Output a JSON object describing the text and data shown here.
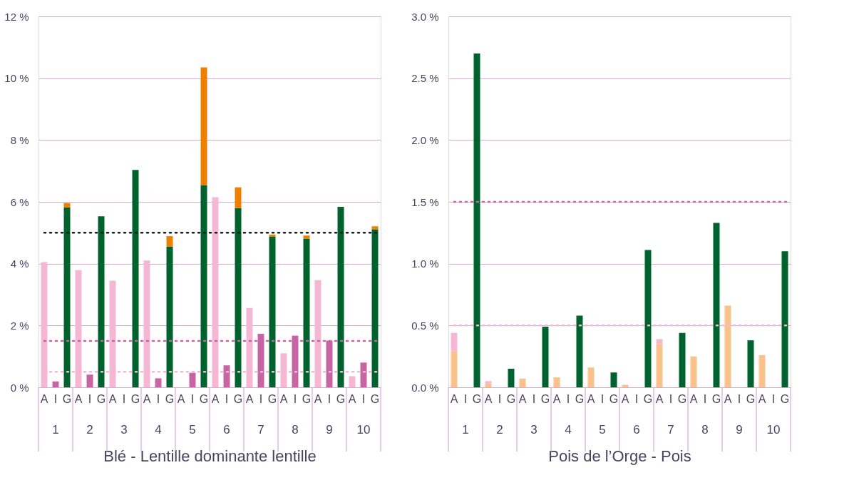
{
  "chart_data": [
    {
      "type": "bar",
      "stacked": true,
      "xlabel": "Blé - Lentille dominante lentille",
      "categories": [
        "A",
        "I",
        "G",
        "A",
        "I",
        "G",
        "A",
        "I",
        "G",
        "A",
        "I",
        "G",
        "A",
        "I",
        "G",
        "A",
        "I",
        "G",
        "A",
        "I",
        "G",
        "A",
        "I",
        "G",
        "A",
        "I",
        "G",
        "A",
        "I",
        "G"
      ],
      "series": [
        {
          "color": "#f4b8d4",
          "values": [
            4.05,
            null,
            null,
            3.79,
            null,
            null,
            3.45,
            null,
            null,
            4.1,
            null,
            null,
            null,
            null,
            null,
            6.15,
            null,
            null,
            2.57,
            null,
            null,
            1.1,
            null,
            null,
            3.47,
            null,
            null,
            0.36,
            null,
            null
          ]
        },
        {
          "color": "#c764a4",
          "values": [
            null,
            0.19,
            null,
            null,
            0.41,
            null,
            null,
            null,
            null,
            null,
            0.29,
            null,
            null,
            0.47,
            null,
            null,
            0.71,
            null,
            null,
            1.73,
            null,
            null,
            1.67,
            null,
            null,
            1.51,
            null,
            null,
            0.8,
            null
          ]
        },
        {
          "color": "#00632e",
          "values": [
            null,
            null,
            5.82,
            null,
            null,
            5.53,
            null,
            null,
            7.03,
            null,
            null,
            4.56,
            null,
            null,
            6.54,
            null,
            null,
            5.8,
            null,
            null,
            4.87,
            null,
            null,
            4.81,
            null,
            null,
            5.84,
            null,
            null,
            5.11
          ]
        },
        {
          "color": "#f07f00",
          "values": [
            null,
            null,
            0.14,
            null,
            null,
            null,
            null,
            null,
            null,
            null,
            null,
            0.33,
            null,
            null,
            3.81,
            null,
            null,
            0.67,
            null,
            null,
            0.07,
            null,
            null,
            0.1,
            null,
            null,
            null,
            null,
            null,
            0.1
          ]
        }
      ],
      "ylim": [
        0,
        12
      ],
      "yticks": [
        {
          "value": 0,
          "label": "0 %"
        },
        {
          "value": 2,
          "label": "2 %"
        },
        {
          "value": 4,
          "label": "4 %"
        },
        {
          "value": 6,
          "label": "6 %"
        },
        {
          "value": 8,
          "label": "8 %"
        },
        {
          "value": 10,
          "label": "10 %"
        },
        {
          "value": 12,
          "label": "12 %"
        }
      ],
      "grid": "y",
      "ref_lines": [
        {
          "axis": "y",
          "value": 5,
          "color": "#1a1a1a",
          "line_style": "dotted"
        },
        {
          "axis": "y",
          "value": 1.5,
          "color": "#c764a4",
          "line_style": "dotted"
        },
        {
          "axis": "y",
          "value": 0.5,
          "color": "#f4b8d4",
          "line_style": "dotted"
        }
      ],
      "annotations": [
        "1",
        "2",
        "3",
        "4",
        "5",
        "6",
        "7",
        "8",
        "9",
        "10"
      ]
    },
    {
      "type": "bar",
      "stacked": true,
      "xlabel": "Pois de l’Orge - Pois",
      "categories": [
        "A",
        "I",
        "G",
        "A",
        "I",
        "G",
        "A",
        "I",
        "G",
        "A",
        "I",
        "G",
        "A",
        "I",
        "G",
        "A",
        "I",
        "G",
        "A",
        "I",
        "G",
        "A",
        "I",
        "G",
        "A",
        "I",
        "G",
        "A",
        "I",
        "G"
      ],
      "series": [
        {
          "color": "#f8c28a",
          "values": [
            0.29,
            null,
            null,
            0.03,
            null,
            null,
            0.07,
            null,
            null,
            0.08,
            null,
            null,
            0.16,
            null,
            null,
            0.02,
            null,
            null,
            0.35,
            null,
            null,
            0.25,
            null,
            null,
            0.66,
            null,
            null,
            0.26,
            null,
            null
          ]
        },
        {
          "color": "#f4b8d4",
          "values": [
            0.15,
            null,
            null,
            0.02,
            null,
            null,
            null,
            null,
            null,
            null,
            null,
            null,
            null,
            null,
            null,
            null,
            null,
            null,
            0.04,
            null,
            null,
            null,
            null,
            null,
            null,
            null,
            null,
            null,
            null,
            null
          ]
        },
        {
          "color": "#00632e",
          "values": [
            null,
            null,
            2.7,
            null,
            null,
            0.15,
            null,
            null,
            0.49,
            null,
            null,
            0.58,
            null,
            null,
            0.12,
            null,
            null,
            1.11,
            null,
            null,
            0.44,
            null,
            null,
            1.33,
            null,
            null,
            0.38,
            null,
            null,
            1.1
          ]
        }
      ],
      "ylim": [
        0,
        3
      ],
      "yticks": [
        {
          "value": 0,
          "label": "0.0 %"
        },
        {
          "value": 0.5,
          "label": "0.5 %"
        },
        {
          "value": 1,
          "label": "1.0 %"
        },
        {
          "value": 1.5,
          "label": "1.5 %"
        },
        {
          "value": 2,
          "label": "2.0 %"
        },
        {
          "value": 2.5,
          "label": "2.5 %"
        },
        {
          "value": 3,
          "label": "3.0 %"
        }
      ],
      "grid": "y",
      "ref_lines": [
        {
          "axis": "y",
          "value": 1.5,
          "color": "#c764a4",
          "line_style": "dotted"
        },
        {
          "axis": "y",
          "value": 0.5,
          "color": "#f4b8d4",
          "line_style": "dotted"
        }
      ],
      "annotations": [
        "1",
        "2",
        "3",
        "4",
        "5",
        "6",
        "7",
        "8",
        "9",
        "10"
      ]
    }
  ]
}
